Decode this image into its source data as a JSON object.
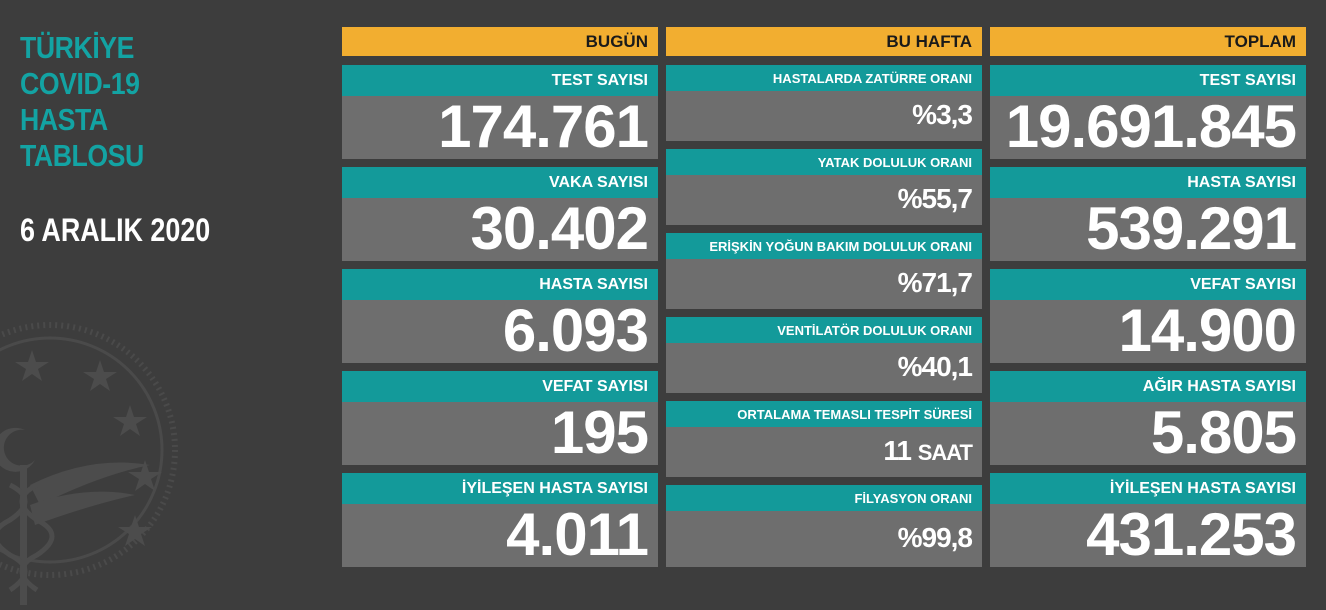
{
  "title_lines": [
    "TÜRKİYE",
    "COVID-19",
    "HASTA",
    "TABLOSU"
  ],
  "date": "6 ARALIK 2020",
  "today": {
    "header": "BUGÜN",
    "items": [
      {
        "label": "TEST SAYISI",
        "value": "174.761"
      },
      {
        "label": "VAKA SAYISI",
        "value": "30.402"
      },
      {
        "label": "HASTA SAYISI",
        "value": "6.093"
      },
      {
        "label": "VEFAT SAYISI",
        "value": "195"
      },
      {
        "label": "İYİLEŞEN HASTA SAYISI",
        "value": "4.011"
      }
    ]
  },
  "week": {
    "header": "BU HAFTA",
    "items": [
      {
        "label": "HASTALARDA ZATÜRRE ORANI",
        "value": "%3,3"
      },
      {
        "label": "YATAK DOLULUK ORANI",
        "value": "%55,7"
      },
      {
        "label": "ERİŞKİN YOĞUN BAKIM DOLULUK ORANI",
        "value": "%71,7"
      },
      {
        "label": "VENTİLATÖR DOLULUK ORANI",
        "value": "%40,1"
      },
      {
        "label": "ORTALAMA TEMASLI TESPİT SÜRESİ",
        "value": "11",
        "unit": "SAAT"
      },
      {
        "label": "FİLYASYON ORANI",
        "value": "%99,8"
      }
    ]
  },
  "total": {
    "header": "TOPLAM",
    "items": [
      {
        "label": "TEST SAYISI",
        "value": "19.691.845"
      },
      {
        "label": "HASTA SAYISI",
        "value": "539.291"
      },
      {
        "label": "VEFAT SAYISI",
        "value": "14.900"
      },
      {
        "label": "AĞIR HASTA SAYISI",
        "value": "5.805"
      },
      {
        "label": "İYİLEŞEN HASTA SAYISI",
        "value": "431.253"
      }
    ]
  },
  "colors": {
    "background": "#3d3d3d",
    "teal": "#139a9a",
    "header_orange": "#f2ae30",
    "card_gray": "#6e6e6e"
  }
}
